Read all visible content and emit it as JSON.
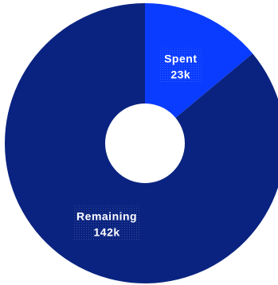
{
  "chart_data": {
    "type": "pie",
    "donut": true,
    "title": "",
    "slices": [
      {
        "label": "Spent",
        "value": 23,
        "display": "23k",
        "color": "#0a3cff"
      },
      {
        "label": "Remaining",
        "value": 142,
        "display": "142k",
        "color": "#0a2380"
      }
    ],
    "legend": "none",
    "grid": false
  }
}
